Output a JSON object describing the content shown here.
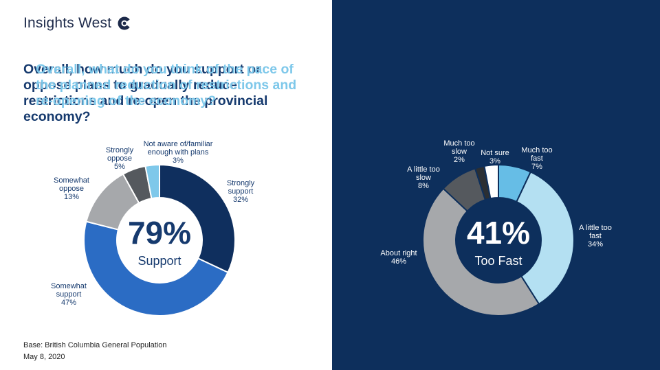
{
  "brand": {
    "name": "Insights West"
  },
  "footer": {
    "base": "Base: British Columbia General Population",
    "date": "May 8, 2020"
  },
  "chart_data": [
    {
      "type": "pie",
      "title": "Overall, how much do you support or oppose plans to gradually reduce restrictions and re-open the provincial economy?",
      "center_value": "79%",
      "center_label": "Support",
      "slices": [
        {
          "label": [
            "Strongly",
            "support"
          ],
          "value": 32,
          "value_label": "32%",
          "color": "#0f2f5e"
        },
        {
          "label": [
            "Somewhat",
            "support"
          ],
          "value": 47,
          "value_label": "47%",
          "color": "#2b6cc4"
        },
        {
          "label": [
            "Somewhat",
            "oppose"
          ],
          "value": 13,
          "value_label": "13%",
          "color": "#a6a8ab"
        },
        {
          "label": [
            "Strongly",
            "oppose"
          ],
          "value": 5,
          "value_label": "5%",
          "color": "#55595e"
        },
        {
          "label": [
            "Not aware of/familiar",
            "enough with plans"
          ],
          "value": 3,
          "value_label": "3%",
          "color": "#7ec8ea"
        }
      ]
    },
    {
      "type": "pie",
      "title": "Overall, what do you think of the pace of the planned reduction of restrictions and re-opening of the economy?",
      "center_value": "41%",
      "center_label": "Too Fast",
      "slices": [
        {
          "label": [
            "Much too",
            "fast"
          ],
          "value": 7,
          "value_label": "7%",
          "color": "#66bde6"
        },
        {
          "label": [
            "A little too",
            "fast"
          ],
          "value": 34,
          "value_label": "34%",
          "color": "#b4e0f2"
        },
        {
          "label": [
            "About right"
          ],
          "value": 46,
          "value_label": "46%",
          "color": "#a6a8ab"
        },
        {
          "label": [
            "A little too",
            "slow"
          ],
          "value": 8,
          "value_label": "8%",
          "color": "#55595e"
        },
        {
          "label": [
            "Much too",
            "slow"
          ],
          "value": 2,
          "value_label": "2%",
          "color": "#2b2f33"
        },
        {
          "label": [
            "Not sure"
          ],
          "value": 3,
          "value_label": "3%",
          "color": "#ffffff"
        }
      ]
    }
  ]
}
